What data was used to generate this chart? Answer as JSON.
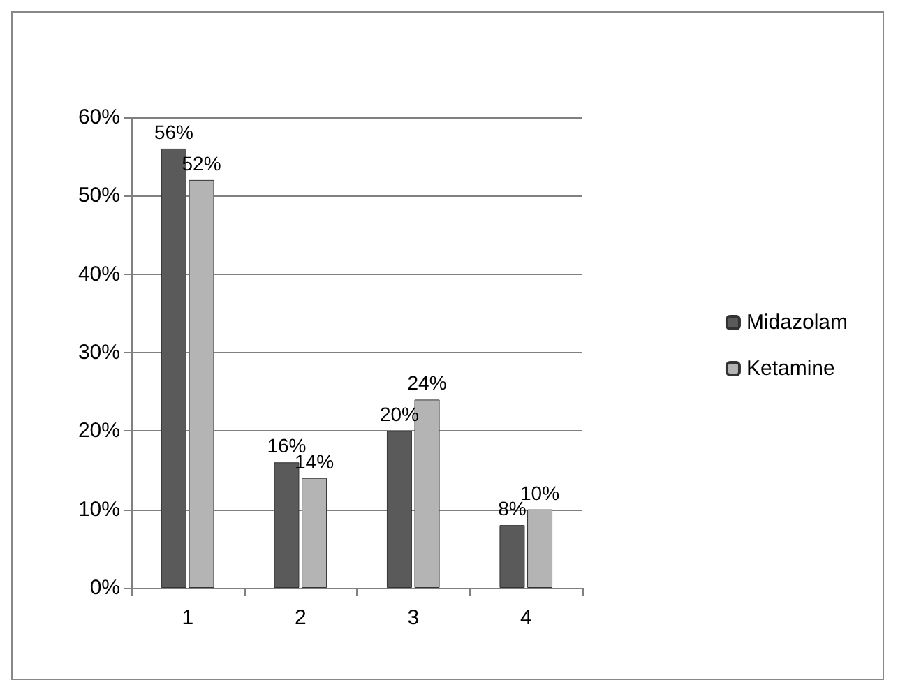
{
  "chart_data": {
    "type": "bar",
    "categories": [
      "1",
      "2",
      "3",
      "4"
    ],
    "series": [
      {
        "name": "Midazolam",
        "color": "#5a5a5a",
        "values": [
          56,
          16,
          20,
          8
        ],
        "value_labels": [
          "56%",
          "16%",
          "20%",
          "8%"
        ]
      },
      {
        "name": "Ketamine",
        "color": "#b4b4b4",
        "values": [
          52,
          14,
          24,
          10
        ],
        "value_labels": [
          "52%",
          "14%",
          "24%",
          "10%"
        ]
      }
    ],
    "ylim": [
      0,
      60
    ],
    "yticks": [
      {
        "value": 0,
        "label": "0%"
      },
      {
        "value": 10,
        "label": "10%"
      },
      {
        "value": 20,
        "label": "20%"
      },
      {
        "value": 30,
        "label": "30%"
      },
      {
        "value": 40,
        "label": "40%"
      },
      {
        "value": 50,
        "label": "50%"
      },
      {
        "value": 60,
        "label": "60%"
      }
    ],
    "grid": "y",
    "legend": "right"
  }
}
